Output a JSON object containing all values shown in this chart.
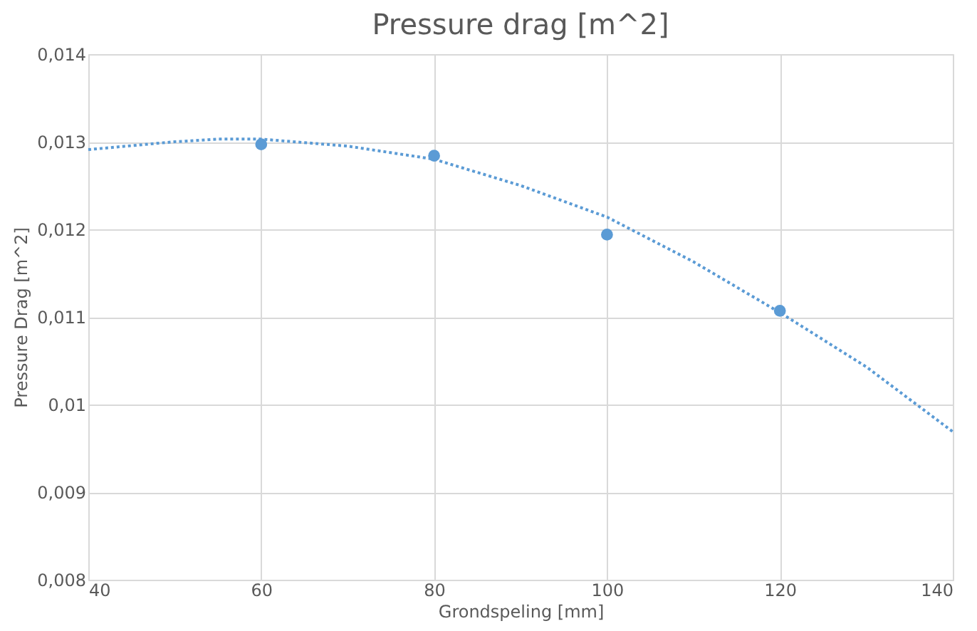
{
  "chart_data": {
    "type": "scatter",
    "title": "Pressure drag [m^2]",
    "xlabel": "Grondspeling [mm]",
    "ylabel": "Pressure Drag [m^2]",
    "xlim": [
      40,
      140
    ],
    "xticks": [
      40,
      60,
      80,
      100,
      120,
      140
    ],
    "ylim": [
      0.008,
      0.014
    ],
    "yticks": [
      {
        "value": 0.008,
        "label": "0,008"
      },
      {
        "value": 0.009,
        "label": "0,009"
      },
      {
        "value": 0.01,
        "label": "0,01"
      },
      {
        "value": 0.011,
        "label": "0,011"
      },
      {
        "value": 0.012,
        "label": "0,012"
      },
      {
        "value": 0.013,
        "label": "0,013"
      },
      {
        "value": 0.014,
        "label": "0,014"
      }
    ],
    "grid": true,
    "marker": "circle",
    "series": [
      {
        "color": "#5b9bd5",
        "x": [
          60,
          80,
          100,
          120
        ],
        "values": [
          0.01297,
          0.01284,
          0.01194,
          0.01107
        ]
      },
      {
        "type": "line",
        "color": "#5b9bd5",
        "line_style": "dotted",
        "marker": "none",
        "x": [
          40,
          50,
          55,
          60,
          70,
          80,
          90,
          100,
          110,
          120,
          130,
          140
        ],
        "values": [
          0.01291,
          0.013,
          0.01303,
          0.01303,
          0.01295,
          0.0128,
          0.0125,
          0.01214,
          0.01163,
          0.01105,
          0.01043,
          0.00969
        ]
      }
    ]
  }
}
